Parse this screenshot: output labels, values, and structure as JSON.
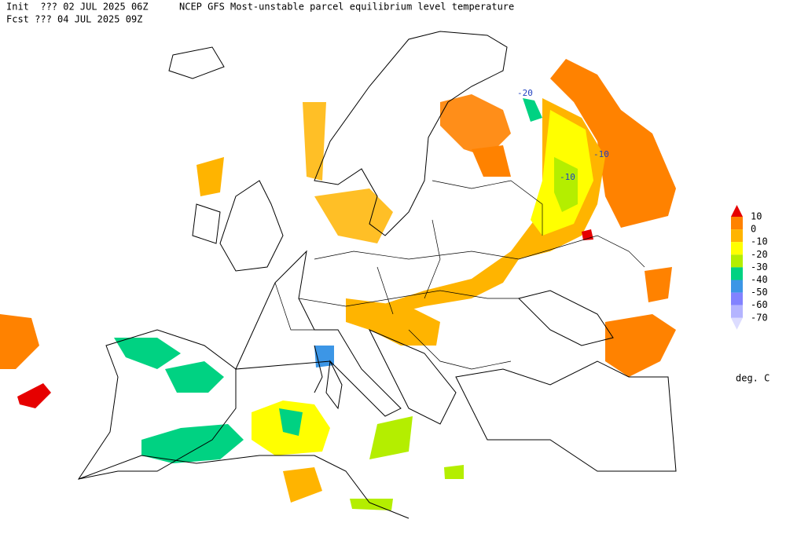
{
  "header": {
    "init": "Init  ??? 02 JUL 2025 06Z",
    "title": "NCEP GFS Most-unstable parcel equilibrium level temperature",
    "fcst": "Fcst ??? 04 JUL 2025 09Z"
  },
  "legend": {
    "levels": [
      10,
      0,
      -10,
      -20,
      -30,
      -40,
      -50,
      -60,
      -70
    ],
    "colors": [
      "#e60000",
      "#ff8200",
      "#ffb400",
      "#ffff00",
      "#b4ee00",
      "#00d282",
      "#3c96e6",
      "#8282ff",
      "#b4b4ff",
      "#dcdcff"
    ],
    "unit": "deg. C"
  },
  "contour_labels": [
    -20,
    -10,
    -10
  ]
}
